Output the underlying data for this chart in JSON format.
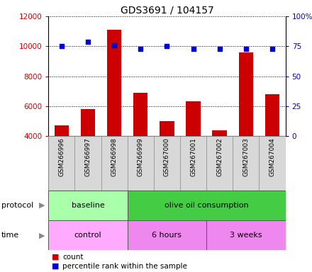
{
  "title": "GDS3691 / 104157",
  "samples": [
    "GSM266996",
    "GSM266997",
    "GSM266998",
    "GSM266999",
    "GSM267000",
    "GSM267001",
    "GSM267002",
    "GSM267003",
    "GSM267004"
  ],
  "counts": [
    4700,
    5800,
    11100,
    6900,
    5000,
    6300,
    4400,
    9600,
    6800
  ],
  "percentile_ranks": [
    75,
    79,
    76,
    73,
    75,
    73,
    73,
    73,
    73
  ],
  "bar_color": "#cc0000",
  "dot_color": "#0000cc",
  "ylim_left": [
    4000,
    12000
  ],
  "ylim_right": [
    0,
    100
  ],
  "yticks_left": [
    4000,
    6000,
    8000,
    10000,
    12000
  ],
  "yticks_right": [
    0,
    25,
    50,
    75,
    100
  ],
  "ytick_labels_right": [
    "0",
    "25",
    "50",
    "75",
    "100%"
  ],
  "protocol_groups": [
    {
      "label": "baseline",
      "start": 0,
      "end": 3,
      "color": "#aaffaa"
    },
    {
      "label": "olive oil consumption",
      "start": 3,
      "end": 9,
      "color": "#44cc44"
    }
  ],
  "time_groups": [
    {
      "label": "control",
      "start": 0,
      "end": 3,
      "color": "#ffaaff"
    },
    {
      "label": "6 hours",
      "start": 3,
      "end": 6,
      "color": "#ee88ee"
    },
    {
      "label": "3 weeks",
      "start": 6,
      "end": 9,
      "color": "#ee88ee"
    }
  ],
  "legend_count_label": "count",
  "legend_pct_label": "percentile rank within the sample",
  "protocol_label": "protocol",
  "time_label": "time",
  "title_fontsize": 10,
  "tick_fontsize": 7.5,
  "sample_fontsize": 6.5,
  "band_fontsize": 8,
  "legend_fontsize": 7.5
}
